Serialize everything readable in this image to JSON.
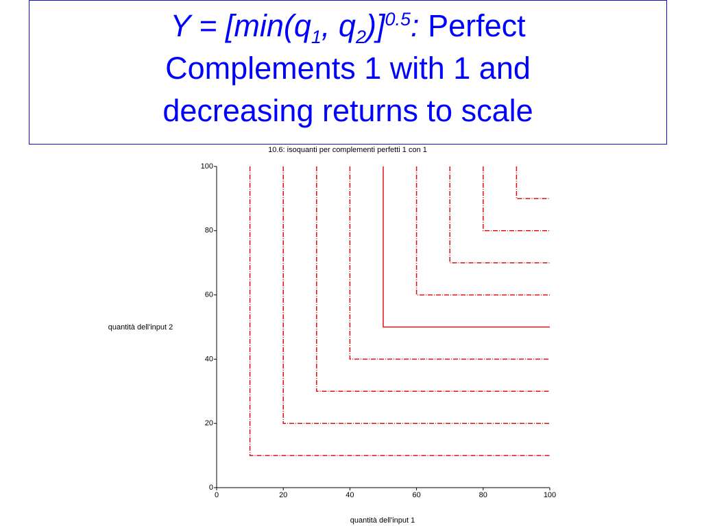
{
  "slide_title": [
    "Y = [min(q",
    "1",
    ", q",
    "2",
    ")]",
    "0.5",
    ":",
    " Perfect",
    "Complements 1 with 1 and",
    "decreasing returns to scale"
  ],
  "chart_data": {
    "type": "line",
    "title": "10.6: isoquanti per complementi perfetti 1 con 1",
    "xlabel": "quantità dell'input 1",
    "ylabel": "quantità dell'input 2",
    "xlim": [
      0,
      100
    ],
    "ylim": [
      0,
      100
    ],
    "xticks": [
      0,
      20,
      40,
      60,
      80,
      100
    ],
    "yticks": [
      0,
      20,
      40,
      60,
      80,
      100
    ],
    "series": [
      {
        "color": "#e01010",
        "dash": "dash-dot",
        "x": [
          10,
          10,
          100
        ],
        "y": [
          100,
          10,
          10
        ]
      },
      {
        "color": "#e01010",
        "dash": "dash-dot",
        "x": [
          20,
          20,
          100
        ],
        "y": [
          100,
          20,
          20
        ]
      },
      {
        "color": "#e01010",
        "dash": "dash-dot",
        "x": [
          30,
          30,
          100
        ],
        "y": [
          100,
          30,
          30
        ]
      },
      {
        "color": "#e01010",
        "dash": "dash-dot",
        "x": [
          40,
          40,
          100
        ],
        "y": [
          100,
          40,
          40
        ]
      },
      {
        "color": "#e01010",
        "dash": "solid",
        "x": [
          50,
          50,
          100
        ],
        "y": [
          100,
          50,
          50
        ]
      },
      {
        "color": "#e01010",
        "dash": "dash-dot",
        "x": [
          60,
          60,
          100
        ],
        "y": [
          100,
          60,
          60
        ]
      },
      {
        "color": "#e01010",
        "dash": "dash-dot",
        "x": [
          70,
          70,
          100
        ],
        "y": [
          100,
          70,
          70
        ]
      },
      {
        "color": "#e01010",
        "dash": "dash-dot",
        "x": [
          80,
          80,
          100
        ],
        "y": [
          100,
          80,
          80
        ]
      },
      {
        "color": "#e01010",
        "dash": "dash-dot",
        "x": [
          90,
          90,
          100
        ],
        "y": [
          100,
          90,
          90
        ]
      }
    ]
  }
}
